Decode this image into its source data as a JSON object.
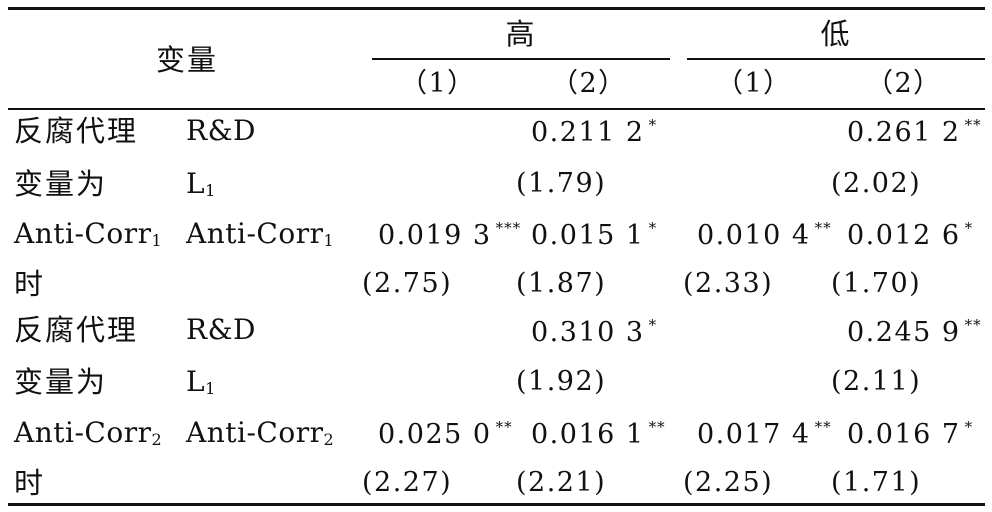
{
  "header": {
    "variable": "变量",
    "group_high": "高",
    "group_low": "低",
    "col_high_1": "（1）",
    "col_high_2": "（2）",
    "col_low_1": "（1）",
    "col_low_2": "（2）"
  },
  "panel1": {
    "label_l1": "反腐代理",
    "label_l2": "变量为",
    "label_l3_main": "Anti-Corr",
    "label_l3_sub": "1",
    "label_l4": "时",
    "rd_name": "R&D",
    "l1_main": "L",
    "l1_sub": "1",
    "ac_main": "Anti-Corr",
    "ac_sub": "1",
    "rd_high2": "0.211 2",
    "rd_high2_star": "*",
    "rd_high2_t": "(1.79)",
    "rd_low2": "0.261 2",
    "rd_low2_star": "**",
    "rd_low2_t": "(2.02)",
    "ac_high1": "0.019 3",
    "ac_high1_star": "***",
    "ac_high2": "0.015 1",
    "ac_high2_star": "*",
    "ac_low1": "0.010 4",
    "ac_low1_star": "**",
    "ac_low2": "0.012 6",
    "ac_low2_star": "*",
    "ac_high1_t": "(2.75)",
    "ac_high2_t": "(1.87)",
    "ac_low1_t": "(2.33)",
    "ac_low2_t": "(1.70)"
  },
  "panel2": {
    "label_l1": "反腐代理",
    "label_l2": "变量为",
    "label_l3_main": "Anti-Corr",
    "label_l3_sub": "2",
    "label_l4": "时",
    "rd_name": "R&D",
    "l1_main": "L",
    "l1_sub": "1",
    "ac_main": "Anti-Corr",
    "ac_sub": "2",
    "rd_high2": "0.310 3",
    "rd_high2_star": "*",
    "rd_high2_t": "(1.92)",
    "rd_low2": "0.245 9",
    "rd_low2_star": "**",
    "rd_low2_t": "(2.11)",
    "ac_high1": "0.025 0",
    "ac_high1_star": "**",
    "ac_high2": "0.016 1",
    "ac_high2_star": "**",
    "ac_low1": "0.017 4",
    "ac_low1_star": "**",
    "ac_low2": "0.016 7",
    "ac_low2_star": "*",
    "ac_high1_t": "(2.27)",
    "ac_high2_t": "(2.21)",
    "ac_low1_t": "(2.25)",
    "ac_low2_t": "(1.71)"
  }
}
